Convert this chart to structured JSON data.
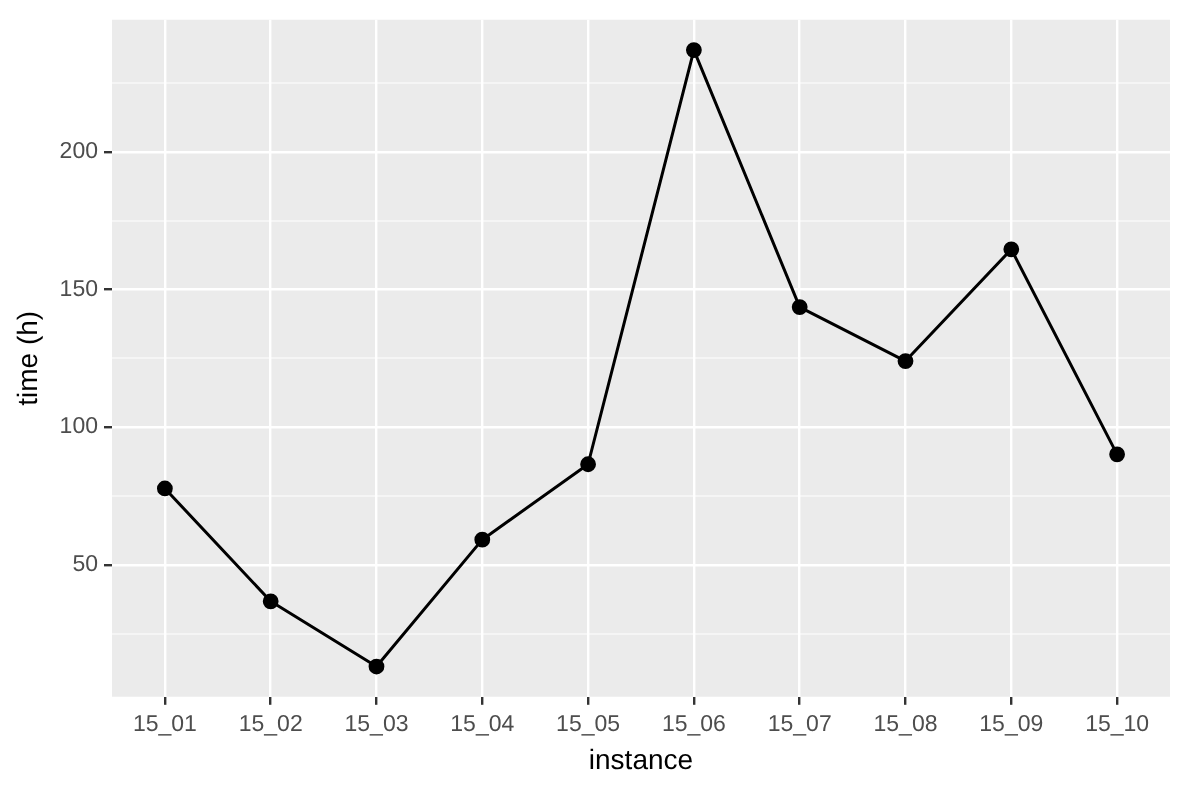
{
  "chart_data": {
    "type": "line",
    "xlabel": "instance",
    "ylabel": "time (h)",
    "categories": [
      "15_01",
      "15_02",
      "15_03",
      "15_04",
      "15_05",
      "15_06",
      "15_07",
      "15_08",
      "15_09",
      "15_10"
    ],
    "series": [
      {
        "color": "#000000",
        "values": [
          77.7,
          36.7,
          13,
          59.1,
          86.5,
          237,
          143.6,
          124,
          164.6,
          90.1
        ]
      }
    ],
    "ylim": [
      2,
      248
    ],
    "yticks": [
      {
        "value": 25,
        "label": null
      },
      50,
      {
        "value": 75,
        "label": null
      },
      100,
      {
        "value": 125,
        "label": null
      },
      150,
      {
        "value": 175,
        "label": null
      },
      200,
      {
        "value": 225,
        "label": null
      }
    ],
    "grid": true,
    "marker": "circle",
    "line_style": "solid",
    "legend": false
  }
}
